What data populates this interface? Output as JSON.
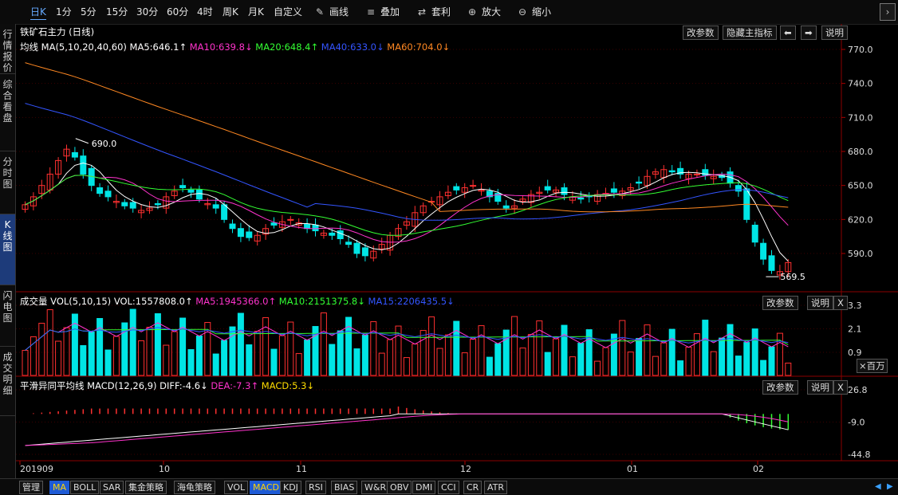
{
  "toolbar": {
    "periods": [
      "日K",
      "1分",
      "5分",
      "15分",
      "30分",
      "60分",
      "4时",
      "周K",
      "月K",
      "自定义"
    ],
    "active_period": "日K",
    "tools": [
      {
        "label": "画线",
        "icon": "pencil-icon"
      },
      {
        "label": "叠加",
        "icon": "stack-icon"
      },
      {
        "label": "套利",
        "icon": "arbitrage-icon"
      },
      {
        "label": "放大",
        "icon": "zoom-in-icon"
      },
      {
        "label": "缩小",
        "icon": "zoom-out-icon"
      }
    ]
  },
  "sidenav": [
    "行情报价",
    "综合看盘",
    "分时图",
    "K线图",
    "闪电图",
    "成交明细"
  ],
  "sidenav_active": "K线图",
  "main": {
    "title": "铁矿石主力 (日线)",
    "buttons": [
      "改参数",
      "隐藏主指标",
      "说明"
    ],
    "ma_legend": [
      {
        "text": "均线 MA(5,10,20,40,60)",
        "color": "#ffffff"
      },
      {
        "text": "MA5:646.1↑",
        "color": "#ffffff"
      },
      {
        "text": "MA10:639.8↓",
        "color": "#ff33cc"
      },
      {
        "text": "MA20:648.4↑",
        "color": "#33ff33"
      },
      {
        "text": "MA40:633.0↓",
        "color": "#3355ff"
      },
      {
        "text": "MA60:704.0↓",
        "color": "#ff8822"
      }
    ],
    "y_ticks": [
      "770.0",
      "740.0",
      "710.0",
      "680.0",
      "650.0",
      "620.0",
      "590.0"
    ],
    "annotation_high": "690.0",
    "annotation_low": "569.5"
  },
  "volume": {
    "legend": [
      {
        "text": "成交量 VOL(5,10,15)",
        "color": "#ffffff"
      },
      {
        "text": "VOL:1557808.0↑",
        "color": "#ffffff"
      },
      {
        "text": "MA5:1945366.0↑",
        "color": "#ff33cc"
      },
      {
        "text": "MA10:2151375.8↓",
        "color": "#33ff33"
      },
      {
        "text": "MA15:2206435.5↓",
        "color": "#3355ff"
      }
    ],
    "buttons": [
      "改参数",
      "说明",
      "X"
    ],
    "y_ticks": [
      "3.3",
      "2.1",
      "0.9"
    ],
    "unit": "×百万"
  },
  "macd": {
    "legend": [
      {
        "text": "平滑异同平均线 MACD(12,26,9)",
        "color": "#ffffff"
      },
      {
        "text": "DIFF:-4.6↓",
        "color": "#ffffff"
      },
      {
        "text": "DEA:-7.3↑",
        "color": "#ff33cc"
      },
      {
        "text": "MACD:5.3↓",
        "color": "#ffdd00"
      }
    ],
    "buttons": [
      "改参数",
      "说明",
      "X"
    ],
    "y_ticks": [
      "26.8",
      "-9.0",
      "-44.8"
    ]
  },
  "x_axis": [
    "201909",
    "10",
    "11",
    "12",
    "01",
    "02"
  ],
  "bottombar": {
    "items": [
      "管理",
      "MA",
      "BOLL",
      "SAR",
      "集金策略",
      "海龟策略",
      "VOL",
      "MACD",
      "KDJ",
      "RSI",
      "BIAS",
      "W&R",
      "OBV",
      "DMI",
      "CCI",
      "CR",
      "ATR"
    ],
    "active": [
      "MA",
      "MACD"
    ]
  },
  "colors": {
    "up": "#ff3030",
    "down": "#00e5e5",
    "ma5": "#ffffff",
    "ma10": "#ff33cc",
    "ma20": "#33ff33",
    "ma40": "#3355ff",
    "ma60": "#ff8822"
  }
}
